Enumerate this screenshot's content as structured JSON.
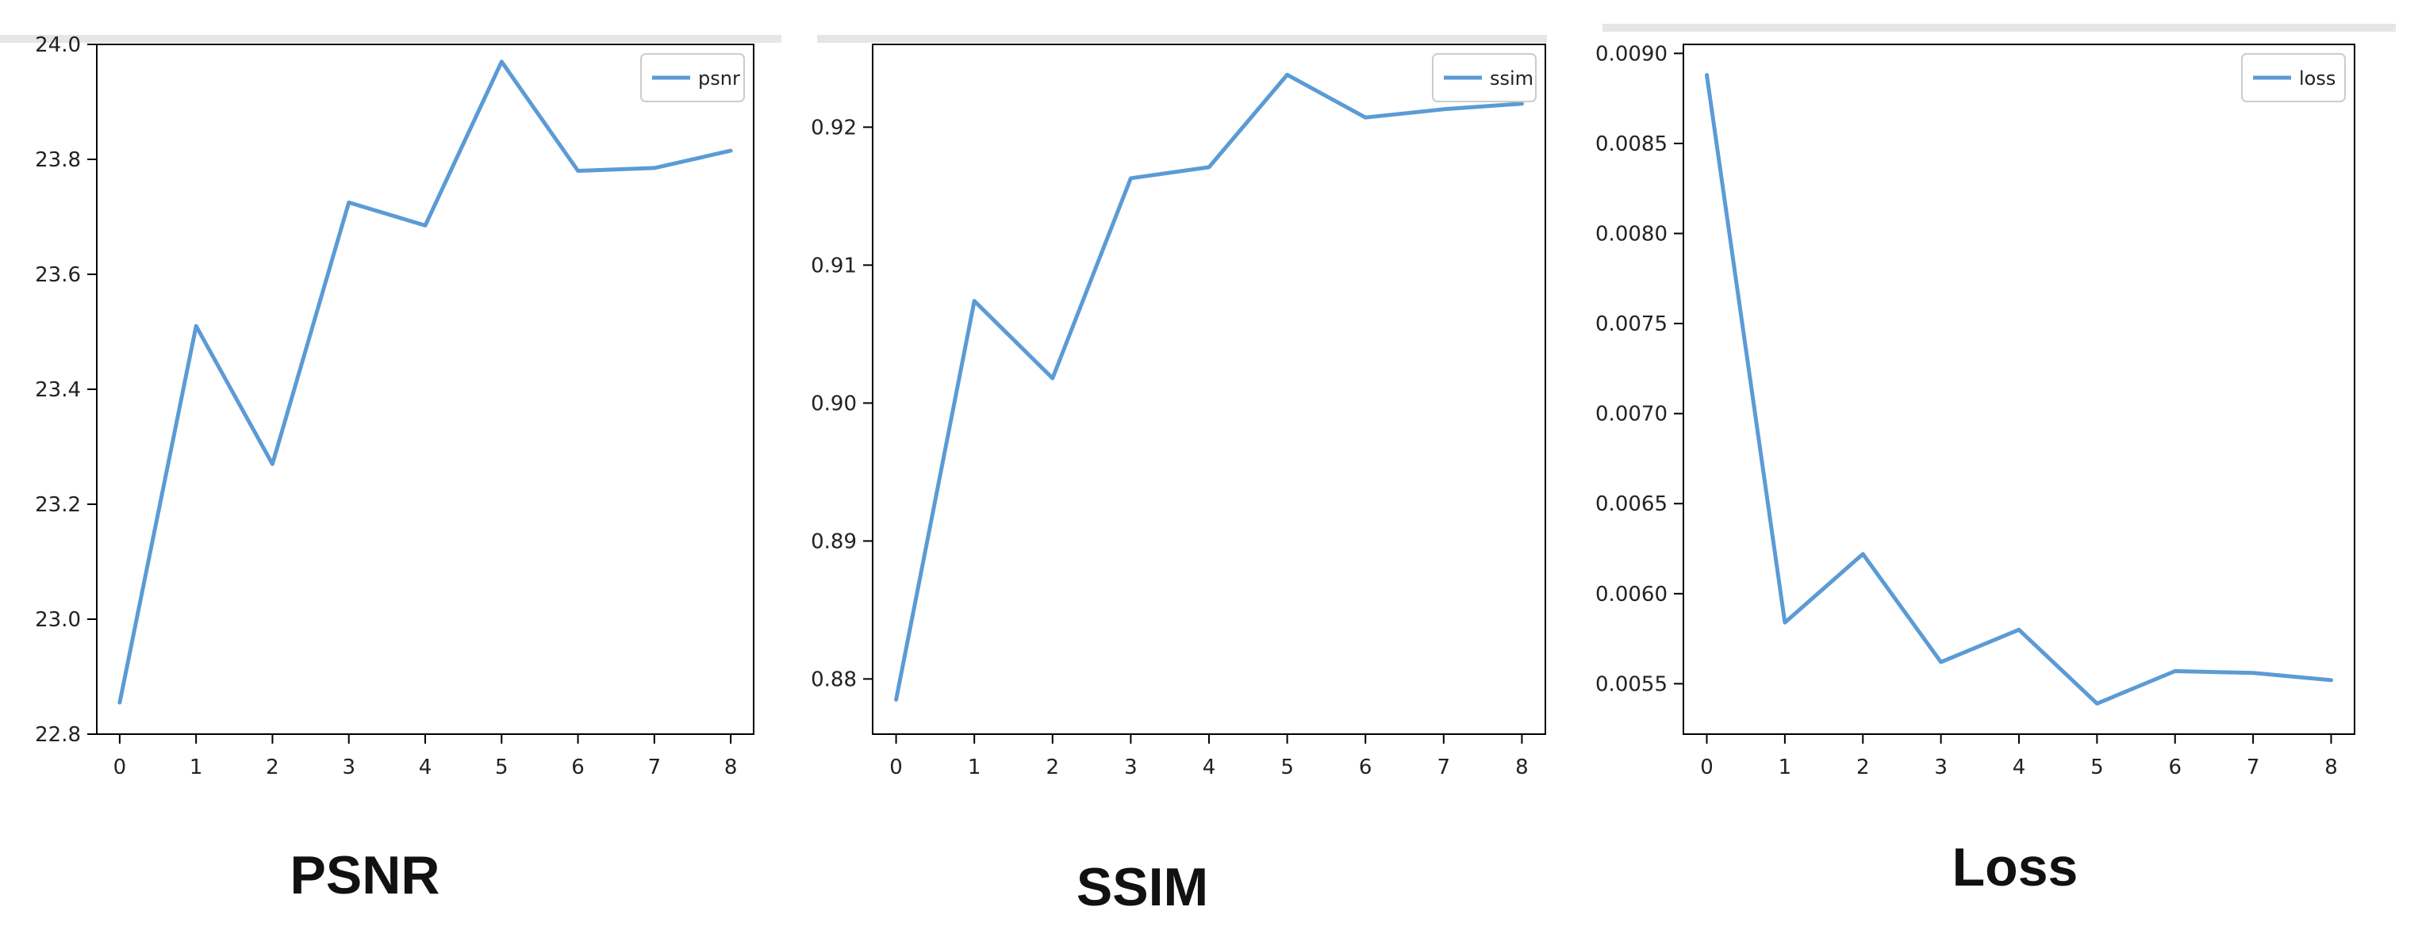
{
  "colors": {
    "line": "#5b9bd5",
    "axis": "#000000",
    "text": "#222222"
  },
  "captions": {
    "psnr": "PSNR",
    "ssim": "SSIM",
    "loss": "Loss"
  },
  "chart_data": [
    {
      "id": "psnr",
      "type": "line",
      "x": [
        0,
        1,
        2,
        3,
        4,
        5,
        6,
        7,
        8
      ],
      "series": [
        {
          "name": "psnr",
          "values": [
            22.855,
            23.51,
            23.27,
            23.725,
            23.685,
            23.97,
            23.78,
            23.785,
            23.815
          ]
        }
      ],
      "xlim": [
        -0.3,
        8.3
      ],
      "ylim": [
        22.8,
        24.0
      ],
      "xticks": [
        0,
        1,
        2,
        3,
        4,
        5,
        6,
        7,
        8
      ],
      "xtick_labels": [
        "0",
        "1",
        "2",
        "3",
        "4",
        "5",
        "6",
        "7",
        "8"
      ],
      "yticks": [
        22.8,
        23.0,
        23.2,
        23.4,
        23.6,
        23.8,
        24.0
      ],
      "ytick_labels": [
        "22.8",
        "23.0",
        "23.2",
        "23.4",
        "23.6",
        "23.8",
        "24.0"
      ],
      "grid": false,
      "legend": "top-right"
    },
    {
      "id": "ssim",
      "type": "line",
      "x": [
        0,
        1,
        2,
        3,
        4,
        5,
        6,
        7,
        8
      ],
      "series": [
        {
          "name": "ssim",
          "values": [
            0.8785,
            0.9074,
            0.9018,
            0.9163,
            0.9171,
            0.9238,
            0.9207,
            0.9213,
            0.9217
          ]
        }
      ],
      "xlim": [
        -0.3,
        8.3
      ],
      "ylim": [
        0.876,
        0.926
      ],
      "xticks": [
        0,
        1,
        2,
        3,
        4,
        5,
        6,
        7,
        8
      ],
      "xtick_labels": [
        "0",
        "1",
        "2",
        "3",
        "4",
        "5",
        "6",
        "7",
        "8"
      ],
      "yticks": [
        0.88,
        0.89,
        0.9,
        0.91,
        0.92
      ],
      "ytick_labels": [
        "0.88",
        "0.89",
        "0.90",
        "0.91",
        "0.92"
      ],
      "grid": false,
      "legend": "top-right"
    },
    {
      "id": "loss",
      "type": "line",
      "x": [
        0,
        1,
        2,
        3,
        4,
        5,
        6,
        7,
        8
      ],
      "series": [
        {
          "name": "loss",
          "values": [
            0.00888,
            0.00584,
            0.00622,
            0.00562,
            0.0058,
            0.00539,
            0.00557,
            0.00556,
            0.00552
          ]
        }
      ],
      "xlim": [
        -0.3,
        8.3
      ],
      "ylim": [
        0.00522,
        0.00905
      ],
      "xticks": [
        0,
        1,
        2,
        3,
        4,
        5,
        6,
        7,
        8
      ],
      "xtick_labels": [
        "0",
        "1",
        "2",
        "3",
        "4",
        "5",
        "6",
        "7",
        "8"
      ],
      "yticks": [
        0.0055,
        0.006,
        0.0065,
        0.007,
        0.0075,
        0.008,
        0.0085,
        0.009
      ],
      "ytick_labels": [
        "0.0055",
        "0.0060",
        "0.0065",
        "0.0070",
        "0.0075",
        "0.0080",
        "0.0085",
        "0.0090"
      ],
      "grid": false,
      "legend": "top-right"
    }
  ]
}
